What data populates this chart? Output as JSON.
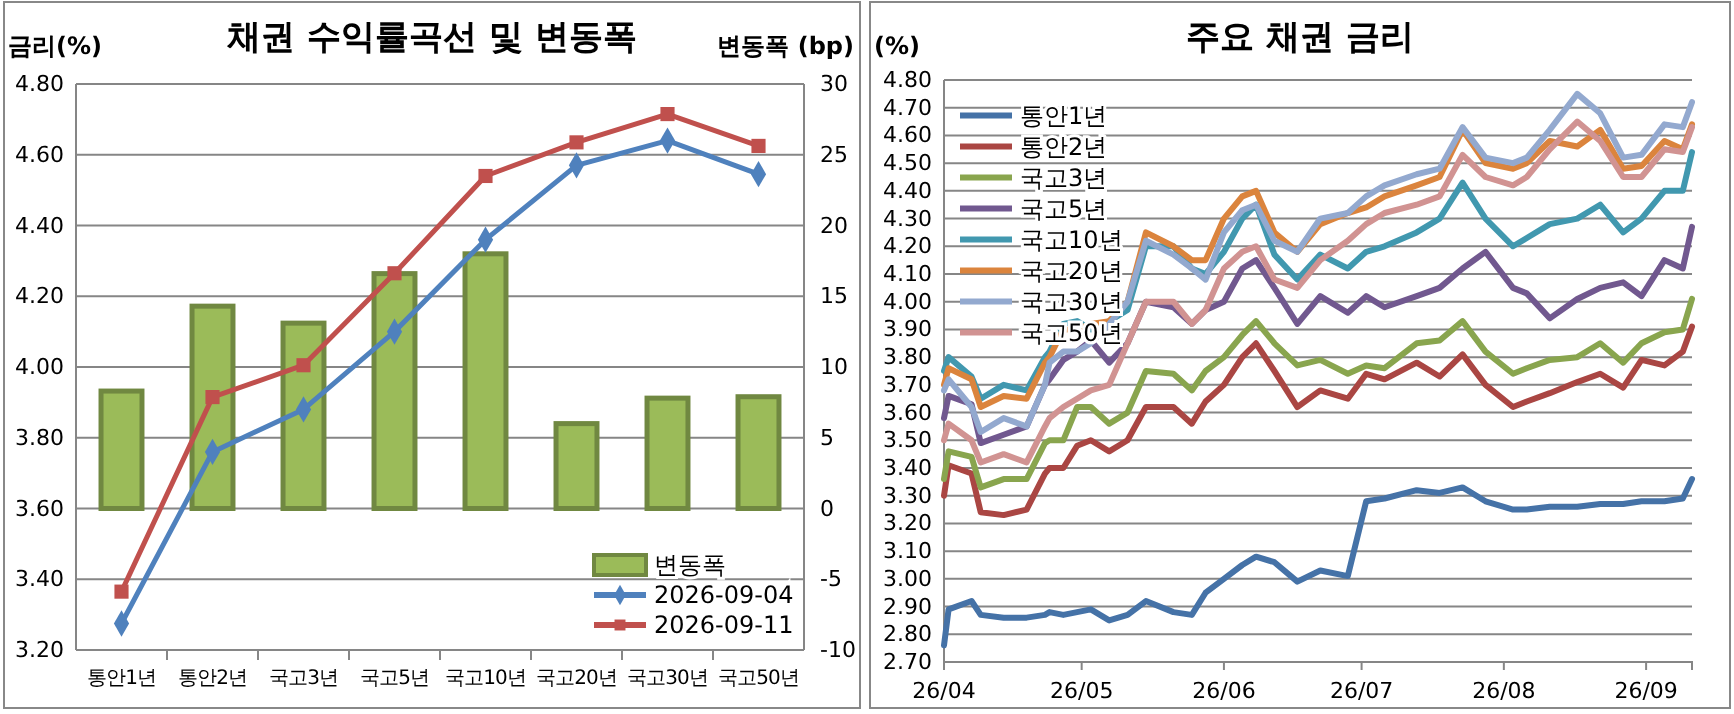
{
  "chart_data": [
    {
      "type": "line",
      "title": "채권 수익률곡선 및 변동폭",
      "ylabel": "금리(%)",
      "y2label": "변동폭 (bp)",
      "categories": [
        "통안1년",
        "통안2년",
        "국고3년",
        "국고5년",
        "국고10년",
        "국고20년",
        "국고30년",
        "국고50년"
      ],
      "series": [
        {
          "name": "변동폭",
          "type": "bar",
          "axis": "y2",
          "color": "#9bbb59",
          "values": [
            8.3,
            14.3,
            13.1,
            16.6,
            18.0,
            6.0,
            7.8,
            7.9
          ]
        },
        {
          "name": "2026-09-04",
          "marker": "diamond",
          "color": "#4f81bd",
          "values": [
            3.275,
            3.76,
            3.88,
            4.1,
            4.36,
            4.57,
            4.64,
            4.545
          ]
        },
        {
          "name": "2026-09-11",
          "marker": "square",
          "color": "#c0504d",
          "values": [
            3.365,
            3.915,
            4.005,
            4.265,
            4.54,
            4.635,
            4.715,
            4.625
          ]
        }
      ],
      "ylim": [
        3.2,
        4.8
      ],
      "yticks": [
        {
          "value": 3.2,
          "label": "3.20"
        },
        {
          "value": 3.4,
          "label": "3.40"
        },
        {
          "value": 3.6,
          "label": "3.60"
        },
        {
          "value": 3.8,
          "label": "3.80"
        },
        {
          "value": 4.0,
          "label": "4.00"
        },
        {
          "value": 4.2,
          "label": "4.20"
        },
        {
          "value": 4.4,
          "label": "4.40"
        },
        {
          "value": 4.6,
          "label": "4.60"
        },
        {
          "value": 4.8,
          "label": "4.80"
        }
      ],
      "y2lim": [
        -10,
        30
      ],
      "y2ticks": [
        -10,
        -5,
        0,
        5,
        10,
        15,
        20,
        25,
        30
      ],
      "grid": "y",
      "legend": "bottom right"
    },
    {
      "type": "line",
      "title": "주요 채권 금리",
      "ylabel": "(%)",
      "marker": "none",
      "x": [
        "2026-04-01",
        "2026-04-02",
        "2026-04-07",
        "2026-04-09",
        "2026-04-14",
        "2026-04-19",
        "2026-04-23",
        "2026-04-24",
        "2026-04-27",
        "2026-04-30",
        "2026-05-03",
        "2026-05-07",
        "2026-05-11",
        "2026-05-15",
        "2026-05-21",
        "2026-05-25",
        "2026-05-28",
        "2026-06-01",
        "2026-06-05",
        "2026-06-08",
        "2026-06-12",
        "2026-06-17",
        "2026-06-22",
        "2026-06-28",
        "2026-07-02",
        "2026-07-06",
        "2026-07-13",
        "2026-07-18",
        "2026-07-23",
        "2026-07-28",
        "2026-08-03",
        "2026-08-06",
        "2026-08-11",
        "2026-08-17",
        "2026-08-22",
        "2026-08-27",
        "2026-08-31",
        "2026-09-05",
        "2026-09-09",
        "2026-09-11"
      ],
      "series": [
        {
          "name": "통안1년",
          "color": "#4572a7",
          "values": [
            2.76,
            2.89,
            2.92,
            2.87,
            2.86,
            2.86,
            2.87,
            2.88,
            2.87,
            2.88,
            2.89,
            2.85,
            2.87,
            2.92,
            2.88,
            2.87,
            2.95,
            3.0,
            3.05,
            3.08,
            3.06,
            2.99,
            3.03,
            3.01,
            3.28,
            3.29,
            3.32,
            3.31,
            3.33,
            3.28,
            3.25,
            3.25,
            3.26,
            3.26,
            3.27,
            3.27,
            3.28,
            3.28,
            3.29,
            3.36
          ]
        },
        {
          "name": "통안2년",
          "color": "#aa4643",
          "values": [
            3.3,
            3.41,
            3.38,
            3.24,
            3.23,
            3.25,
            3.38,
            3.4,
            3.4,
            3.48,
            3.5,
            3.46,
            3.5,
            3.62,
            3.62,
            3.56,
            3.64,
            3.7,
            3.8,
            3.85,
            3.75,
            3.62,
            3.68,
            3.65,
            3.74,
            3.72,
            3.78,
            3.73,
            3.81,
            3.7,
            3.62,
            3.64,
            3.67,
            3.71,
            3.74,
            3.69,
            3.79,
            3.77,
            3.82,
            3.91
          ]
        },
        {
          "name": "국고3년",
          "color": "#89a54e",
          "values": [
            3.36,
            3.46,
            3.44,
            3.33,
            3.36,
            3.36,
            3.49,
            3.5,
            3.5,
            3.62,
            3.62,
            3.56,
            3.6,
            3.75,
            3.74,
            3.68,
            3.75,
            3.8,
            3.88,
            3.93,
            3.85,
            3.77,
            3.79,
            3.74,
            3.77,
            3.76,
            3.85,
            3.86,
            3.93,
            3.82,
            3.74,
            3.76,
            3.79,
            3.8,
            3.85,
            3.78,
            3.85,
            3.89,
            3.9,
            4.01
          ]
        },
        {
          "name": "국고5년",
          "color": "#71588f",
          "values": [
            3.58,
            3.66,
            3.63,
            3.49,
            3.52,
            3.55,
            3.7,
            3.72,
            3.79,
            3.82,
            3.86,
            3.78,
            3.85,
            4.0,
            3.98,
            3.92,
            3.97,
            4.0,
            4.12,
            4.15,
            4.05,
            3.92,
            4.02,
            3.96,
            4.02,
            3.98,
            4.02,
            4.05,
            4.12,
            4.18,
            4.05,
            4.03,
            3.94,
            4.01,
            4.05,
            4.07,
            4.02,
            4.15,
            4.12,
            4.27
          ]
        },
        {
          "name": "국고10년",
          "color": "#4198af",
          "values": [
            3.75,
            3.8,
            3.73,
            3.65,
            3.7,
            3.68,
            3.8,
            3.82,
            3.92,
            3.93,
            3.9,
            3.93,
            3.97,
            4.2,
            4.2,
            4.12,
            4.1,
            4.18,
            4.3,
            4.35,
            4.17,
            4.08,
            4.17,
            4.12,
            4.18,
            4.2,
            4.25,
            4.3,
            4.43,
            4.3,
            4.2,
            4.23,
            4.28,
            4.3,
            4.35,
            4.25,
            4.3,
            4.4,
            4.4,
            4.54
          ]
        },
        {
          "name": "국고20년",
          "color": "#db843d",
          "values": [
            3.7,
            3.76,
            3.72,
            3.62,
            3.66,
            3.65,
            3.78,
            3.8,
            3.9,
            3.9,
            3.92,
            3.93,
            4.0,
            4.25,
            4.2,
            4.15,
            4.15,
            4.3,
            4.38,
            4.4,
            4.25,
            4.18,
            4.28,
            4.32,
            4.34,
            4.38,
            4.42,
            4.45,
            4.62,
            4.5,
            4.48,
            4.5,
            4.58,
            4.56,
            4.62,
            4.48,
            4.49,
            4.58,
            4.55,
            4.64
          ]
        },
        {
          "name": "국고30년",
          "color": "#93a9cf",
          "values": [
            3.68,
            3.72,
            3.62,
            3.53,
            3.58,
            3.55,
            3.7,
            3.78,
            3.82,
            3.82,
            3.85,
            3.92,
            4.0,
            4.22,
            4.17,
            4.12,
            4.08,
            4.25,
            4.33,
            4.35,
            4.22,
            4.18,
            4.3,
            4.32,
            4.38,
            4.42,
            4.46,
            4.48,
            4.63,
            4.52,
            4.5,
            4.52,
            4.62,
            4.75,
            4.68,
            4.52,
            4.53,
            4.64,
            4.63,
            4.72
          ]
        },
        {
          "name": "국고50년",
          "color": "#d19392",
          "values": [
            3.5,
            3.56,
            3.5,
            3.42,
            3.45,
            3.42,
            3.55,
            3.58,
            3.62,
            3.65,
            3.68,
            3.7,
            3.85,
            4.0,
            4.0,
            3.92,
            3.97,
            4.12,
            4.18,
            4.2,
            4.08,
            4.05,
            4.15,
            4.22,
            4.28,
            4.32,
            4.35,
            4.38,
            4.53,
            4.45,
            4.42,
            4.45,
            4.55,
            4.65,
            4.58,
            4.45,
            4.45,
            4.55,
            4.54,
            4.63
          ]
        }
      ],
      "xlim": [
        "2026-04-01",
        "2026-09-11"
      ],
      "xticks": [
        {
          "value": "2026-04-01",
          "label": "26/04"
        },
        {
          "value": "2026-05-01",
          "label": "26/05"
        },
        {
          "value": "2026-06-01",
          "label": "26/06"
        },
        {
          "value": "2026-07-01",
          "label": "26/07"
        },
        {
          "value": "2026-08-01",
          "label": "26/08"
        },
        {
          "value": "2026-09-01",
          "label": "26/09"
        }
      ],
      "ylim": [
        2.7,
        4.8
      ],
      "yticks": [
        {
          "value": 2.7,
          "label": "2.70"
        },
        {
          "value": 2.8,
          "label": "2.80"
        },
        {
          "value": 2.9,
          "label": "2.90"
        },
        {
          "value": 3.0,
          "label": "3.00"
        },
        {
          "value": 3.1,
          "label": "3.10"
        },
        {
          "value": 3.2,
          "label": "3.20"
        },
        {
          "value": 3.3,
          "label": "3.30"
        },
        {
          "value": 3.4,
          "label": "3.40"
        },
        {
          "value": 3.5,
          "label": "3.50"
        },
        {
          "value": 3.6,
          "label": "3.60"
        },
        {
          "value": 3.7,
          "label": "3.70"
        },
        {
          "value": 3.8,
          "label": "3.80"
        },
        {
          "value": 3.9,
          "label": "3.90"
        },
        {
          "value": 4.0,
          "label": "4.00"
        },
        {
          "value": 4.1,
          "label": "4.10"
        },
        {
          "value": 4.2,
          "label": "4.20"
        },
        {
          "value": 4.3,
          "label": "4.30"
        },
        {
          "value": 4.4,
          "label": "4.40"
        },
        {
          "value": 4.5,
          "label": "4.50"
        },
        {
          "value": 4.6,
          "label": "4.60"
        },
        {
          "value": 4.7,
          "label": "4.70"
        },
        {
          "value": 4.8,
          "label": "4.80"
        }
      ],
      "grid": "y",
      "legend": "top left"
    }
  ]
}
